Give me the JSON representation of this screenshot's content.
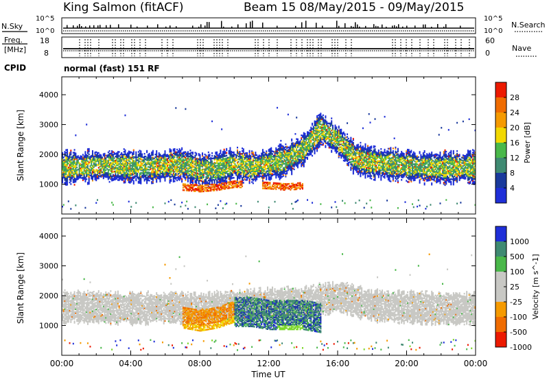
{
  "header": {
    "station": "King Salmon (fitACF)",
    "beam_info": "Beam 15 08/May/2015 - 09/May/2015"
  },
  "noise_panel": {
    "left_label": "N.Sky",
    "right_label": "N.Search",
    "left_ticks": [
      "10^5",
      "10^0"
    ],
    "right_ticks": [
      "10^5",
      "10^0"
    ]
  },
  "freq_panel": {
    "left_label_line1": "Freq.",
    "left_label_line2": "[MHz]",
    "right_label": "Nave",
    "left_ticks": [
      "18",
      "8"
    ],
    "right_ticks": [
      "60",
      "0"
    ]
  },
  "cpid": {
    "label": "CPID",
    "value": "normal (fast) 151 RF"
  },
  "colors": {
    "blue": "#1f2fd8",
    "navy": "#1a3a9c",
    "teal": "#3f8a72",
    "green": "#4ab84a",
    "lime": "#7dd82a",
    "yellow": "#f2d800",
    "orange": "#f59a00",
    "dark_orange": "#f06c00",
    "red": "#ec1a00",
    "gray": "#c8c8c4"
  },
  "chart_data": [
    {
      "type": "heatmap",
      "title": "Power",
      "xlabel": "",
      "ylabel": "Slant Range [km]",
      "xlim": [
        0,
        24
      ],
      "ylim": [
        0,
        4600
      ],
      "x_tick_values": [
        0,
        4,
        8,
        12,
        16,
        20,
        24
      ],
      "y_tick_labels": [
        "1000",
        "2000",
        "3000",
        "4000"
      ],
      "colorbar_label": "Power [dB]",
      "colorbar_ticks": [
        "4",
        "8",
        "12",
        "16",
        "20",
        "24",
        "28"
      ],
      "colorbar_colors": [
        "#1f2fd8",
        "#1a3a9c",
        "#3f8a72",
        "#4ab84a",
        "#f2d800",
        "#f59a00",
        "#f06c00",
        "#ec1a00"
      ],
      "series": [
        {
          "name": "backscatter band",
          "x": [
            0,
            1,
            2,
            3,
            4,
            5,
            6,
            7,
            8,
            9,
            10,
            11,
            12,
            13,
            14,
            15,
            16,
            17,
            18,
            19,
            20,
            21,
            22,
            23,
            24
          ],
          "values": [
            1600,
            1600,
            1650,
            1650,
            1620,
            1600,
            1650,
            1700,
            1500,
            1550,
            1700,
            1600,
            1700,
            1850,
            2200,
            2900,
            2500,
            1900,
            1750,
            1700,
            1650,
            1600,
            1580,
            1600,
            1600
          ]
        },
        {
          "name": "near range echoes",
          "x": [
            7,
            8,
            9,
            10,
            12,
            13,
            14
          ],
          "values": [
            950,
            900,
            950,
            1050,
            1000,
            950,
            1000
          ]
        }
      ]
    },
    {
      "type": "heatmap",
      "title": "Velocity",
      "xlabel": "Time UT",
      "ylabel": "Slant Range [km]",
      "xlim": [
        0,
        24
      ],
      "ylim": [
        0,
        4600
      ],
      "x_tick_labels": [
        "00:00",
        "04:00",
        "08:00",
        "12:00",
        "16:00",
        "20:00",
        "00:00"
      ],
      "y_tick_labels": [
        "1000",
        "2000",
        "3000",
        "4000"
      ],
      "colorbar_label": "Velocity [m s^-1]",
      "colorbar_ticks": [
        "1000",
        "500",
        "100",
        "25",
        "-25",
        "-100",
        "-500",
        "-1000"
      ],
      "colorbar_colors": [
        "#1f2fd8",
        "#3f8a72",
        "#4ab84a",
        "#c8c8c4",
        "#c8c8c4",
        "#f59a00",
        "#f06c00",
        "#ec1a00"
      ],
      "series": [
        {
          "name": "ground scatter band",
          "x": [
            0,
            2,
            4,
            6,
            8,
            10,
            12,
            14,
            16,
            18,
            20,
            22,
            24
          ],
          "values": [
            1650,
            1650,
            1600,
            1650,
            1600,
            1700,
            1750,
            1800,
            2000,
            1700,
            1650,
            1600,
            1600
          ]
        },
        {
          "name": "flow region",
          "x": [
            7,
            8,
            9,
            10,
            11,
            12,
            13,
            14,
            15
          ],
          "values": [
            1300,
            1200,
            1300,
            1500,
            1500,
            1400,
            1400,
            1400,
            1300
          ]
        }
      ]
    }
  ]
}
